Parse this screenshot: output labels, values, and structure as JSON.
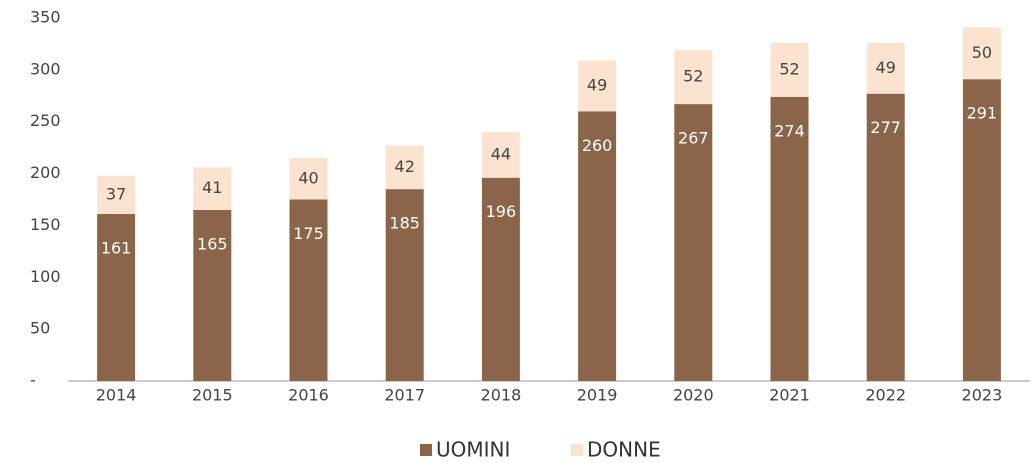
{
  "chart_data": {
    "type": "stacked_bar",
    "categories": [
      "2014",
      "2015",
      "2016",
      "2017",
      "2018",
      "2019",
      "2020",
      "2021",
      "2022",
      "2023"
    ],
    "series": [
      {
        "name": "UOMINI",
        "color": "#8b6549",
        "values": [
          161,
          165,
          175,
          185,
          196,
          260,
          267,
          274,
          277,
          291
        ]
      },
      {
        "name": "DONNE",
        "color": "#fbe3cf",
        "values": [
          37,
          41,
          40,
          42,
          44,
          49,
          52,
          52,
          49,
          50
        ]
      }
    ],
    "ylim": [
      0,
      350
    ],
    "yticks": [
      {
        "value": 0,
        "label": "-"
      },
      50,
      100,
      150,
      200,
      250,
      300,
      350
    ],
    "grid": false,
    "legend": "bottom"
  }
}
